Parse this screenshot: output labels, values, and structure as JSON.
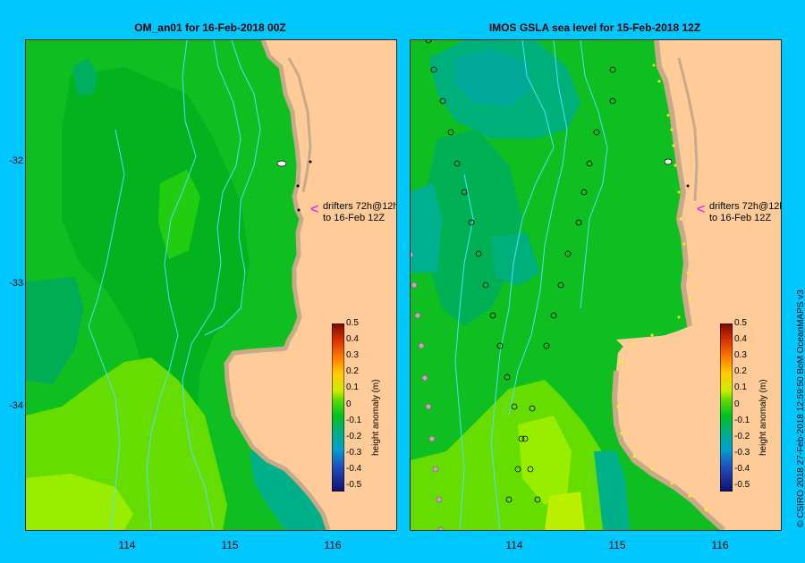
{
  "panels": [
    {
      "title": "OM_an01  for 16-Feb-2018 00Z",
      "drifter_label_line1": "drifters 72h@12h",
      "drifter_label_line2": "to 16-Feb 12Z",
      "arrow": "<",
      "colorbar_title": "height anomaly (m)"
    },
    {
      "title": "IMOS GSLA sea level  for 15-Feb-2018 12Z",
      "drifter_label_line1": "drifters 72h@12h",
      "drifter_label_line2": "to 16-Feb 12Z",
      "arrow": "<",
      "colorbar_title": "height anomaly (m)"
    }
  ],
  "y_ticks": [
    "-32",
    "-33",
    "-34"
  ],
  "x_ticks": [
    "114",
    "115",
    "116"
  ],
  "colorbar_ticks": [
    "0.5",
    "0.4",
    "0.3",
    "0.2",
    "0.1",
    "0",
    "-0.1",
    "-0.2",
    "-0.3",
    "-0.4",
    "-0.5"
  ],
  "credit": "© CSIRO 2018   27-Feb-2018 12:59:50 BoM OceanMAPS v3",
  "colors": {
    "background": "#00c8ff",
    "land": "#ffcc99",
    "coast": "#c8aa88",
    "contour_line": "#55ddff",
    "drifter_arrow": "#e040e0"
  }
}
